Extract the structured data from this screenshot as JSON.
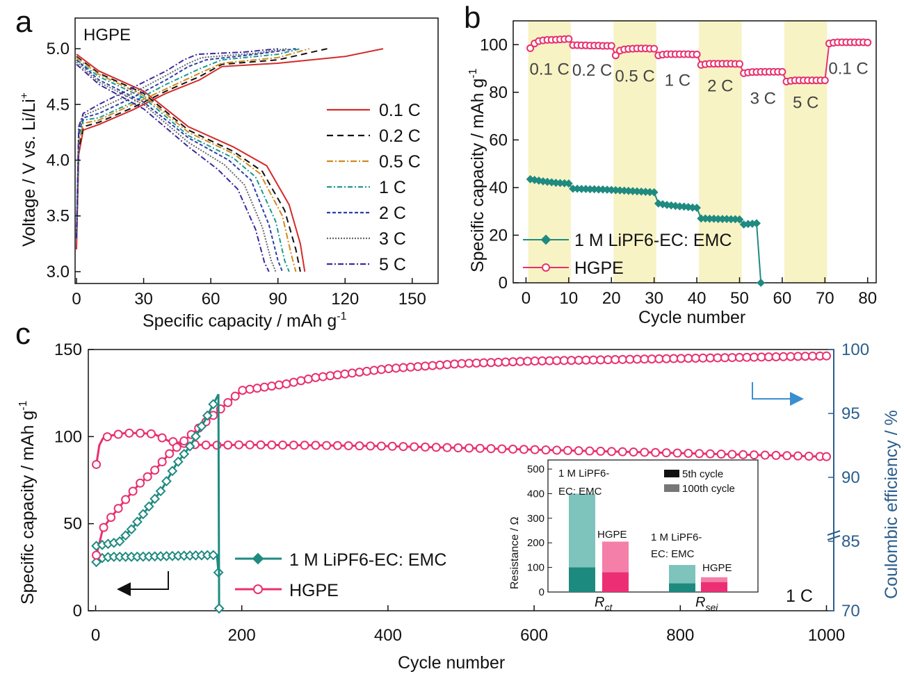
{
  "panels": {
    "a": {
      "letter": "a",
      "label": "HGPE",
      "xlabel": "Specific capacity / mAh g",
      "xlabel_sup": "-1",
      "ylabel": "Voltage / V vs. Li/Li",
      "ylabel_sup": "+",
      "xticks": [
        "0",
        "30",
        "60",
        "90",
        "120",
        "150"
      ],
      "yticks": [
        "3.0",
        "3.5",
        "4.0",
        "4.5",
        "5.0"
      ]
    },
    "b": {
      "letter": "b",
      "xlabel": "Cycle number",
      "ylabel": "Specific capacity / mAh g",
      "ylabel_sup": "-1",
      "xticks": [
        "0",
        "10",
        "20",
        "30",
        "40",
        "50",
        "60",
        "70",
        "80"
      ],
      "yticks": [
        "0",
        "20",
        "40",
        "60",
        "80",
        "100"
      ],
      "rate_labels": [
        "0.1 C",
        "0.2 C",
        "0.5 C",
        "1 C",
        "2 C",
        "3 C",
        "5 C",
        "0.1 C"
      ],
      "legend": [
        "1 M LiPF6-EC: EMC",
        "HGPE"
      ]
    },
    "c": {
      "letter": "c",
      "xlabel": "Cycle number",
      "ylabel_left": "Specific capacity / mAh g",
      "ylabel_left_sup": "-1",
      "ylabel_right": "Coulombic efficiency / %",
      "xticks": [
        "0",
        "200",
        "400",
        "600",
        "800",
        "1000"
      ],
      "yticks_left": [
        "0",
        "50",
        "100",
        "150"
      ],
      "yticks_right": [
        "70",
        "85",
        "90",
        "95",
        "100"
      ],
      "rate": "1 C",
      "legend": [
        "1 M LiPF6-EC: EMC",
        "HGPE"
      ],
      "inset": {
        "ylabel": "Resistance / Ω",
        "yticks": [
          "0",
          "100",
          "200",
          "300",
          "400",
          "500"
        ],
        "group_labels": [
          "R",
          "R"
        ],
        "group_subs": [
          "ct",
          "sei"
        ],
        "bar_labels": [
          "1 M LiPF6-EC: EMC",
          "HGPE",
          "1 M LiPF6-EC: EMC",
          "HGPE"
        ],
        "legend": [
          "5th cycle",
          "100th cycle"
        ]
      }
    }
  },
  "colors": {
    "hgpe": "#e8306e",
    "liquid": "#1f8a80",
    "rate_band": "#f7f3c4",
    "right_axis": "#2c5e8c",
    "arrow_blue": "#3a8fd0"
  },
  "chart_data": [
    {
      "id": "a",
      "type": "line",
      "title": "",
      "xlabel": "Specific capacity / mAh g-1",
      "ylabel": "Voltage / V vs. Li/Li+",
      "xlim": [
        0,
        160
      ],
      "ylim": [
        2.9,
        5.25
      ],
      "series": [
        {
          "name": "0.1 C",
          "color": "#d42a2a",
          "dash": "",
          "charge": {
            "x": [
              0,
              1,
              3,
              10,
              25,
              40,
              55,
              65,
              90,
              120,
              137
            ],
            "y": [
              3.2,
              4.05,
              4.27,
              4.32,
              4.45,
              4.6,
              4.72,
              4.84,
              4.87,
              4.93,
              5.0
            ]
          },
          "discharge": {
            "x": [
              0,
              10,
              30,
              50,
              70,
              85,
              95,
              100,
              102
            ],
            "y": [
              4.95,
              4.8,
              4.62,
              4.3,
              4.12,
              3.95,
              3.6,
              3.25,
              3.0
            ]
          }
        },
        {
          "name": "0.2 C",
          "color": "#111111",
          "dash": "9,6",
          "charge": {
            "x": [
              0,
              1,
              3,
              10,
              25,
              40,
              55,
              65,
              90,
              112
            ],
            "y": [
              3.3,
              4.1,
              4.3,
              4.34,
              4.47,
              4.62,
              4.75,
              4.86,
              4.9,
              5.0
            ]
          },
          "discharge": {
            "x": [
              0,
              10,
              30,
              50,
              70,
              83,
              93,
              98,
              100
            ],
            "y": [
              4.93,
              4.78,
              4.6,
              4.27,
              4.08,
              3.9,
              3.55,
              3.2,
              3.0
            ]
          }
        },
        {
          "name": "0.5 C",
          "color": "#d08a1e",
          "dash": "9,3,2,3",
          "charge": {
            "x": [
              0,
              1,
              3,
              10,
              25,
              40,
              55,
              65,
              90,
              104
            ],
            "y": [
              3.3,
              4.15,
              4.33,
              4.36,
              4.5,
              4.64,
              4.78,
              4.87,
              4.92,
              5.0
            ]
          },
          "discharge": {
            "x": [
              0,
              10,
              30,
              50,
              70,
              82,
              92,
              96,
              98
            ],
            "y": [
              4.92,
              4.77,
              4.58,
              4.25,
              4.06,
              3.88,
              3.5,
              3.15,
              3.0
            ]
          }
        },
        {
          "name": "1 C",
          "color": "#1a9a8f",
          "dash": "7,3,2,3",
          "charge": {
            "x": [
              0,
              1,
              3,
              10,
              25,
              40,
              55,
              65,
              90,
              100
            ],
            "y": [
              3.3,
              4.2,
              4.36,
              4.38,
              4.52,
              4.68,
              4.82,
              4.9,
              4.95,
              5.0
            ]
          },
          "discharge": {
            "x": [
              0,
              10,
              30,
              50,
              70,
              80,
              89,
              93,
              95
            ],
            "y": [
              4.9,
              4.75,
              4.56,
              4.22,
              4.02,
              3.85,
              3.45,
              3.1,
              3.0
            ]
          }
        },
        {
          "name": "2 C",
          "color": "#2b3ea8",
          "dash": "5,3",
          "charge": {
            "x": [
              0,
              1,
              3,
              10,
              25,
              40,
              50,
              58,
              80,
              98
            ],
            "y": [
              3.3,
              4.24,
              4.38,
              4.42,
              4.56,
              4.72,
              4.84,
              4.9,
              4.95,
              5.0
            ]
          },
          "discharge": {
            "x": [
              0,
              10,
              30,
              50,
              68,
              78,
              86,
              90,
              92
            ],
            "y": [
              4.9,
              4.72,
              4.52,
              4.2,
              4.0,
              3.82,
              3.42,
              3.1,
              3.0
            ]
          }
        },
        {
          "name": "3 C",
          "color": "#666666",
          "dash": "2,2",
          "charge": {
            "x": [
              0,
              1,
              3,
              10,
              25,
              40,
              50,
              56,
              80,
              94
            ],
            "y": [
              3.3,
              4.28,
              4.4,
              4.46,
              4.6,
              4.76,
              4.87,
              4.92,
              4.96,
              5.0
            ]
          },
          "discharge": {
            "x": [
              0,
              10,
              30,
              50,
              66,
              75,
              83,
              87,
              89
            ],
            "y": [
              4.88,
              4.7,
              4.5,
              4.16,
              3.96,
              3.78,
              3.4,
              3.1,
              3.0
            ]
          }
        },
        {
          "name": "5 C",
          "color": "#3a2a9a",
          "dash": "8,3,2,3",
          "charge": {
            "x": [
              0,
              1,
              3,
              10,
              25,
              40,
              48,
              54,
              75,
              90
            ],
            "y": [
              3.3,
              4.3,
              4.42,
              4.5,
              4.65,
              4.8,
              4.9,
              4.95,
              4.97,
              5.0
            ]
          },
          "discharge": {
            "x": [
              0,
              10,
              30,
              50,
              63,
              72,
              80,
              84,
              86
            ],
            "y": [
              4.86,
              4.68,
              4.46,
              4.12,
              3.92,
              3.74,
              3.38,
              3.08,
              3.0
            ]
          }
        }
      ]
    },
    {
      "id": "b",
      "type": "scatter",
      "title": "",
      "xlabel": "Cycle number",
      "ylabel": "Specific capacity / mAh g-1",
      "xlim": [
        -3,
        82
      ],
      "ylim": [
        0,
        110
      ],
      "rate_segments": [
        {
          "label": "0.1 C",
          "start": 1,
          "end": 10,
          "shaded": true
        },
        {
          "label": "0.2 C",
          "start": 11,
          "end": 20,
          "shaded": false
        },
        {
          "label": "0.5 C",
          "start": 21,
          "end": 30,
          "shaded": true
        },
        {
          "label": "1 C",
          "start": 31,
          "end": 40,
          "shaded": false
        },
        {
          "label": "2 C",
          "start": 41,
          "end": 50,
          "shaded": true
        },
        {
          "label": "3 C",
          "start": 51,
          "end": 60,
          "shaded": false
        },
        {
          "label": "5 C",
          "start": 61,
          "end": 70,
          "shaded": true
        },
        {
          "label": "0.1 C",
          "start": 71,
          "end": 80,
          "shaded": false
        }
      ],
      "series": [
        {
          "name": "HGPE",
          "marker": "circle",
          "x": [
            1,
            2,
            3,
            4,
            5,
            6,
            7,
            8,
            9,
            10,
            11,
            12,
            13,
            14,
            15,
            16,
            17,
            18,
            19,
            20,
            21,
            22,
            23,
            24,
            25,
            26,
            27,
            28,
            29,
            30,
            31,
            32,
            33,
            34,
            35,
            36,
            37,
            38,
            39,
            40,
            41,
            42,
            43,
            44,
            45,
            46,
            47,
            48,
            49,
            50,
            51,
            52,
            53,
            54,
            55,
            56,
            57,
            58,
            59,
            60,
            61,
            62,
            63,
            64,
            65,
            66,
            67,
            68,
            69,
            70,
            71,
            72,
            73,
            74,
            75,
            76,
            77,
            78,
            79,
            80
          ],
          "y": [
            98.5,
            100.5,
            101.5,
            101.8,
            102,
            102,
            102.1,
            102.2,
            102.3,
            102.4,
            99.8,
            99.8,
            99.7,
            99.7,
            99.6,
            99.6,
            99.6,
            99.5,
            99.5,
            99.5,
            95.5,
            97.5,
            98,
            98.2,
            98.3,
            98.4,
            98.4,
            98.4,
            98.3,
            98.3,
            95.5,
            95.8,
            96,
            96,
            96,
            96,
            96,
            96,
            95.9,
            95.9,
            91.5,
            91.8,
            92,
            92,
            92,
            92,
            92,
            92,
            91.9,
            91.9,
            88,
            88.3,
            88.5,
            88.5,
            88.6,
            88.6,
            88.6,
            88.6,
            88.6,
            88.6,
            84.5,
            84.8,
            85,
            85,
            85,
            85,
            85,
            85,
            85,
            85,
            100.5,
            100.8,
            101,
            101,
            101,
            101,
            101,
            101,
            101,
            100.9
          ]
        },
        {
          "name": "1 M LiPF6-EC: EMC",
          "marker": "diamond",
          "x": [
            1,
            2,
            3,
            4,
            5,
            6,
            7,
            8,
            9,
            10,
            11,
            12,
            13,
            14,
            15,
            16,
            17,
            18,
            19,
            20,
            21,
            22,
            23,
            24,
            25,
            26,
            27,
            28,
            29,
            30,
            31,
            32,
            33,
            34,
            35,
            36,
            37,
            38,
            39,
            40,
            41,
            42,
            43,
            44,
            45,
            46,
            47,
            48,
            49,
            50,
            51,
            52,
            53,
            54,
            55
          ],
          "y": [
            43.5,
            43.2,
            42.9,
            42.6,
            42.4,
            42.2,
            42,
            41.9,
            41.8,
            41.7,
            39.5,
            39.5,
            39.4,
            39.4,
            39.3,
            39.3,
            39.2,
            39.2,
            39.1,
            39,
            38.9,
            38.8,
            38.7,
            38.6,
            38.5,
            38.4,
            38.3,
            38.2,
            38.1,
            38,
            33.3,
            33,
            32.7,
            32.5,
            32.3,
            32.1,
            32,
            31.8,
            31.6,
            31.5,
            27,
            27,
            26.9,
            26.9,
            26.8,
            26.8,
            26.8,
            26.7,
            26.7,
            26.6,
            24.5,
            24.7,
            24.8,
            25,
            0
          ]
        }
      ]
    },
    {
      "id": "c",
      "type": "scatter",
      "title": "",
      "xlabel": "Cycle number",
      "ylabel": "Specific capacity / mAh g-1",
      "y2label": "Coulombic efficiency / %",
      "xlim": [
        -10,
        1010
      ],
      "ylim": [
        0,
        150
      ],
      "y2_ticks": [
        70,
        85,
        90,
        95,
        100
      ],
      "series": [
        {
          "name": "HGPE",
          "quantity": "capacity",
          "marker": "circle",
          "x": [
            1,
            5,
            10,
            20,
            40,
            60,
            80,
            100,
            130,
            160,
            200,
            300,
            400,
            500,
            600,
            700,
            800,
            900,
            1000
          ],
          "y": [
            84,
            95,
            99,
            100.5,
            102,
            102,
            101.5,
            97.5,
            95.5,
            95,
            95.3,
            95,
            94.5,
            93.5,
            92.5,
            91.5,
            90.5,
            89.5,
            88.5
          ]
        },
        {
          "name": "1 M LiPF6-EC: EMC",
          "quantity": "capacity",
          "marker": "diamond",
          "x": [
            1,
            5,
            20,
            50,
            80,
            110,
            140,
            166,
            168
          ],
          "y": [
            28,
            30,
            31,
            31,
            31.2,
            31.5,
            31.8,
            32,
            22
          ]
        },
        {
          "name": "HGPE",
          "quantity": "coulombic_efficiency",
          "marker": "circle",
          "x": [
            1,
            5,
            10,
            20,
            40,
            60,
            80,
            100,
            130,
            160,
            200,
            260,
            300,
            400,
            500,
            600,
            700,
            800,
            900,
            1000
          ],
          "y": [
            82,
            84.5,
            86,
            86.8,
            88.2,
            89.5,
            90.5,
            91.8,
            93.3,
            94.8,
            96.8,
            97.3,
            97.8,
            98.5,
            98.9,
            99.1,
            99.2,
            99.3,
            99.4,
            99.5
          ]
        },
        {
          "name": "1 M LiPF6-EC: EMC",
          "quantity": "coulombic_efficiency",
          "marker": "diamond",
          "x": [
            1,
            30,
            50,
            70,
            90,
            110,
            130,
            150,
            168,
            169
          ],
          "y": [
            84,
            84.8,
            86,
            87.5,
            89,
            91,
            92.5,
            94.5,
            96.5,
            70.5
          ]
        }
      ],
      "inset": {
        "type": "bar",
        "ylabel": "Resistance / Ω",
        "ylim": [
          0,
          520
        ],
        "groups": [
          "Rct",
          "Rsei"
        ],
        "bars": [
          {
            "group": "Rct",
            "electrolyte": "1 M LiPF6-EC: EMC",
            "cycle5": 100,
            "cycle100": 400
          },
          {
            "group": "Rct",
            "electrolyte": "HGPE",
            "cycle5": 80,
            "cycle100": 205
          },
          {
            "group": "Rsei",
            "electrolyte": "1 M LiPF6-EC: EMC",
            "cycle5": 35,
            "cycle100": 110
          },
          {
            "group": "Rsei",
            "electrolyte": "HGPE",
            "cycle5": 40,
            "cycle100": 60
          }
        ]
      }
    }
  ]
}
